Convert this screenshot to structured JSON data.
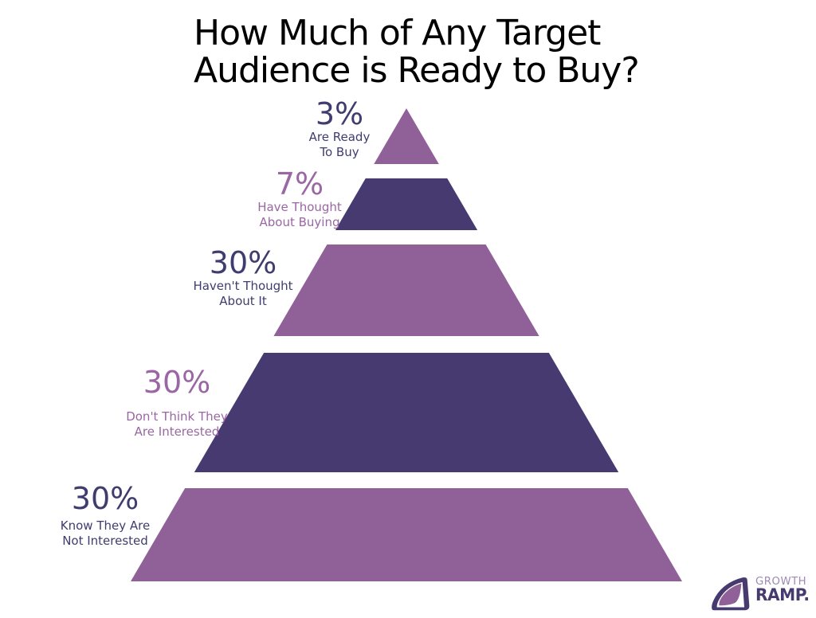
{
  "title": {
    "line1": "How Much of Any Target",
    "line2": "Audience is Ready to Buy?"
  },
  "colors": {
    "background": "#FFFFFF",
    "title_color": "#000000",
    "band_mauve": "#906199",
    "band_navy": "#463A70",
    "text_navy": "#3F3C6F",
    "text_mauve": "#9A66A3",
    "logo_dark": "#473A6F",
    "logo_light": "#9D8AB5"
  },
  "chart_data": {
    "type": "pyramid",
    "title": "How Much of Any Target Audience is Ready to Buy?",
    "categories": [
      "Are Ready To Buy",
      "Have Thought About Buying",
      "Haven't Thought About It",
      "Don't Think They Are Interested",
      "Know They Are Not Interested"
    ],
    "values": [
      3,
      7,
      30,
      30,
      30
    ],
    "tiers": [
      {
        "value": "3%",
        "percent": 3,
        "description_lines": [
          "Are Ready",
          "To Buy"
        ],
        "band_color": "#906199",
        "text_color": "#3F3C6F"
      },
      {
        "value": "7%",
        "percent": 7,
        "description_lines": [
          "Have Thought",
          "About Buying"
        ],
        "band_color": "#463A70",
        "text_color": "#9A66A3"
      },
      {
        "value": "30%",
        "percent": 30,
        "description_lines": [
          "Haven't Thought",
          "About It"
        ],
        "band_color": "#906199",
        "text_color": "#3F3C6F"
      },
      {
        "value": "30%",
        "percent": 30,
        "description_lines": [
          "Don't Think They",
          "Are Interested"
        ],
        "band_color": "#463A70",
        "text_color": "#9A66A3"
      },
      {
        "value": "30%",
        "percent": 30,
        "description_lines": [
          "Know They Are",
          "Not Interested"
        ],
        "band_color": "#906199",
        "text_color": "#3F3C6F"
      }
    ]
  },
  "logo": {
    "word1": "GROWTH",
    "word2": "RAMP."
  }
}
